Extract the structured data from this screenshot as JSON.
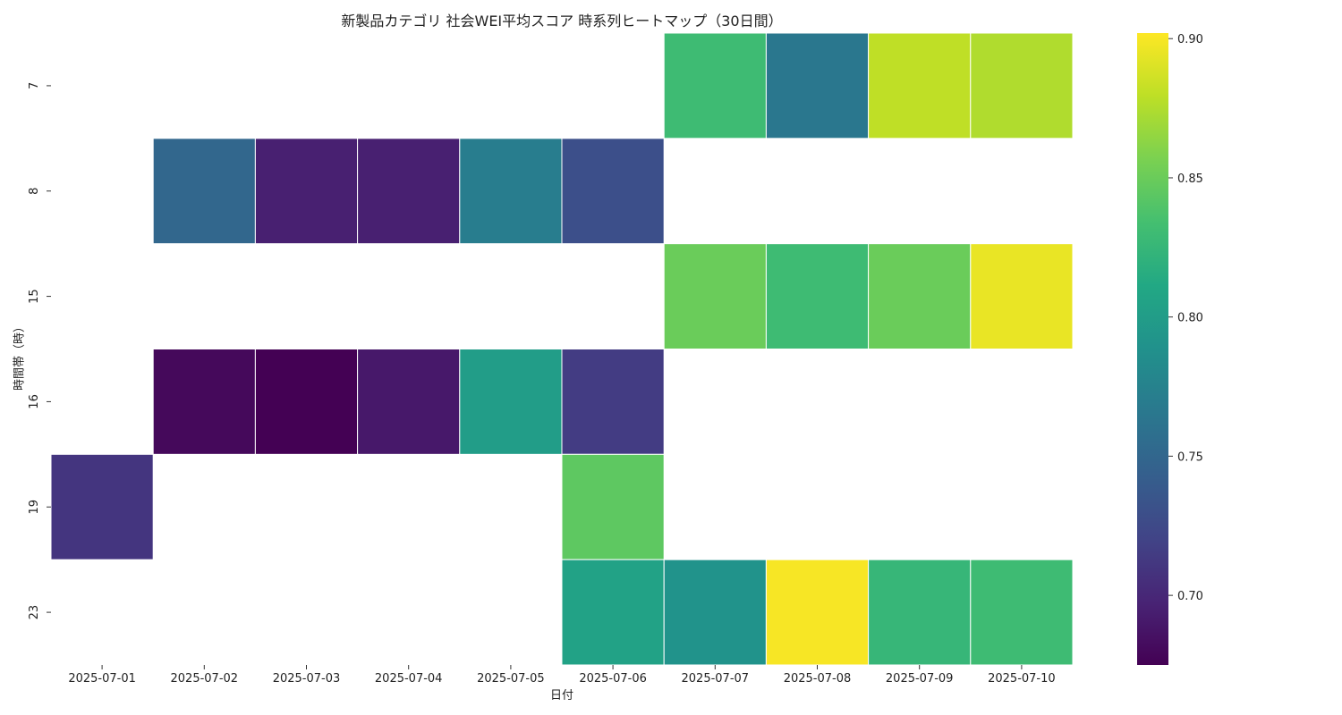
{
  "chart_data": {
    "type": "heatmap",
    "title": "新製品カテゴリ 社会WEI平均スコア 時系列ヒートマップ（30日間）",
    "xlabel": "日付",
    "ylabel": "時間帯（時）",
    "x_categories": [
      "2025-07-01",
      "2025-07-02",
      "2025-07-03",
      "2025-07-04",
      "2025-07-05",
      "2025-07-06",
      "2025-07-07",
      "2025-07-08",
      "2025-07-09",
      "2025-07-10"
    ],
    "y_categories": [
      "7",
      "8",
      "15",
      "16",
      "19",
      "23"
    ],
    "values": [
      [
        null,
        null,
        null,
        null,
        null,
        null,
        0.83,
        0.765,
        0.88,
        0.875
      ],
      [
        null,
        0.75,
        0.695,
        0.695,
        0.77,
        0.73,
        null,
        null,
        null,
        null
      ],
      [
        null,
        null,
        null,
        null,
        null,
        null,
        0.85,
        0.83,
        0.85,
        0.895
      ],
      [
        null,
        0.68,
        0.675,
        0.69,
        0.8,
        0.715,
        null,
        null,
        null,
        null
      ],
      [
        0.71,
        null,
        null,
        null,
        null,
        0.845,
        null,
        null,
        null,
        null
      ],
      [
        null,
        null,
        null,
        null,
        null,
        0.805,
        0.79,
        0.9,
        0.825,
        0.83
      ]
    ],
    "colorbar": {
      "colormap": "viridis",
      "range": [
        0.675,
        0.902
      ],
      "ticks": [
        0.7,
        0.75,
        0.8,
        0.85,
        0.9
      ],
      "tick_labels": [
        "0.70",
        "0.75",
        "0.80",
        "0.85",
        "0.90"
      ]
    }
  }
}
